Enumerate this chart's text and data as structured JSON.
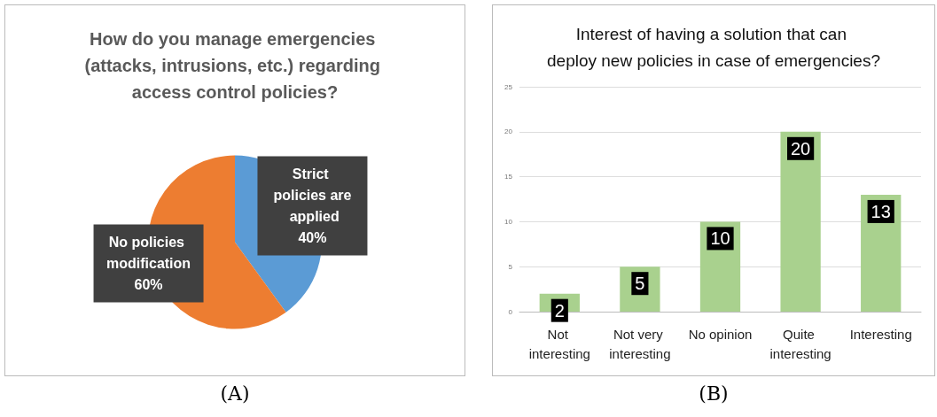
{
  "chart_data": [
    {
      "type": "pie",
      "title": "How do you manage emergencies (attacks, intrusions, etc.) regarding access control policies?",
      "categories": [
        "Strict policies are applied",
        "No policies modification"
      ],
      "values": [
        40,
        60
      ],
      "colors": [
        "#5b9bd5",
        "#ed7d31"
      ],
      "value_labels": [
        "40%",
        "60%"
      ],
      "annotations": [
        "(A)"
      ]
    },
    {
      "type": "bar",
      "title": "Interest of having a solution that can deploy new policies in case of emergencies?",
      "categories": [
        "Not interesting",
        "Not very interesting",
        "No opinion",
        "Quite interesting",
        "Interesting"
      ],
      "values": [
        2,
        5,
        10,
        20,
        13
      ],
      "color": "#a9d18e",
      "ylim": [
        0,
        25
      ],
      "yticks": [
        0,
        5,
        10,
        15,
        20,
        25
      ],
      "grid": "y",
      "data_labels": true,
      "annotations": [
        "(B)"
      ]
    }
  ]
}
